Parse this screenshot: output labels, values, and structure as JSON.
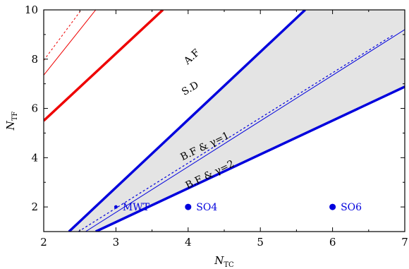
{
  "chart_data": {
    "type": "line",
    "title": "",
    "xlabel": "N_TC",
    "ylabel": "N_TF",
    "xlabel_parts": {
      "base": "N",
      "sub": "TC"
    },
    "ylabel_parts": {
      "base": "N",
      "sub": "TF"
    },
    "xlim": [
      2,
      7
    ],
    "ylim": [
      1,
      10
    ],
    "xticks": [
      2,
      3,
      4,
      5,
      6,
      7
    ],
    "yticks": [
      2,
      4,
      6,
      8,
      10
    ],
    "grid": false,
    "shaded_region": {
      "between": [
        "A.F",
        "B.F & γ=2"
      ],
      "color": "#e4e4e4"
    },
    "series": [
      {
        "name": "A.F",
        "x": [
          2.35,
          5.62
        ],
        "y": [
          1.0,
          10.0
        ],
        "color": "#0000dd",
        "width": 3.5,
        "dash": "solid"
      },
      {
        "name": "S.D",
        "x": [
          2.48,
          6.85
        ],
        "y": [
          1.0,
          9.0
        ],
        "color": "#0000dd",
        "width": 1.2,
        "dash": "dotted"
      },
      {
        "name": "B.F & γ=1",
        "x": [
          2.58,
          7.0
        ],
        "y": [
          1.0,
          9.2
        ],
        "color": "#0000dd",
        "width": 1.0,
        "dash": "solid"
      },
      {
        "name": "B.F & γ=2",
        "x": [
          2.72,
          7.0
        ],
        "y": [
          1.0,
          6.88
        ],
        "color": "#0000dd",
        "width": 3.5,
        "dash": "solid"
      },
      {
        "name": "",
        "x": [
          2.0,
          3.65
        ],
        "y": [
          5.5,
          10.0
        ],
        "color": "#ee0000",
        "width": 3.5,
        "dash": "solid"
      },
      {
        "name": "",
        "x": [
          2.0,
          2.72
        ],
        "y": [
          7.35,
          10.0
        ],
        "color": "#ee0000",
        "width": 1.0,
        "dash": "solid"
      },
      {
        "name": "",
        "x": [
          2.0,
          2.52
        ],
        "y": [
          7.95,
          10.0
        ],
        "color": "#ee0000",
        "width": 1.0,
        "dash": "dotted"
      }
    ],
    "line_labels": [
      {
        "text": "A.F",
        "x": 4.08,
        "y": 8.0,
        "angle": -42
      },
      {
        "text": "S.D",
        "x": 4.05,
        "y": 6.7,
        "angle": -30
      },
      {
        "text": "B.F & γ=1",
        "x": 4.25,
        "y": 4.35,
        "angle": -26
      },
      {
        "text": "B.F & γ=2",
        "x": 4.32,
        "y": 3.2,
        "angle": -26
      }
    ],
    "points": [
      {
        "label": "MWT",
        "x": 3.0,
        "y": 2.0,
        "size": 2.5,
        "color": "#0000dd"
      },
      {
        "label": "SO4",
        "x": 4.0,
        "y": 2.0,
        "size": 4.5,
        "color": "#0000dd"
      },
      {
        "label": "SO6",
        "x": 6.0,
        "y": 2.0,
        "size": 4.5,
        "color": "#0000dd"
      }
    ]
  }
}
